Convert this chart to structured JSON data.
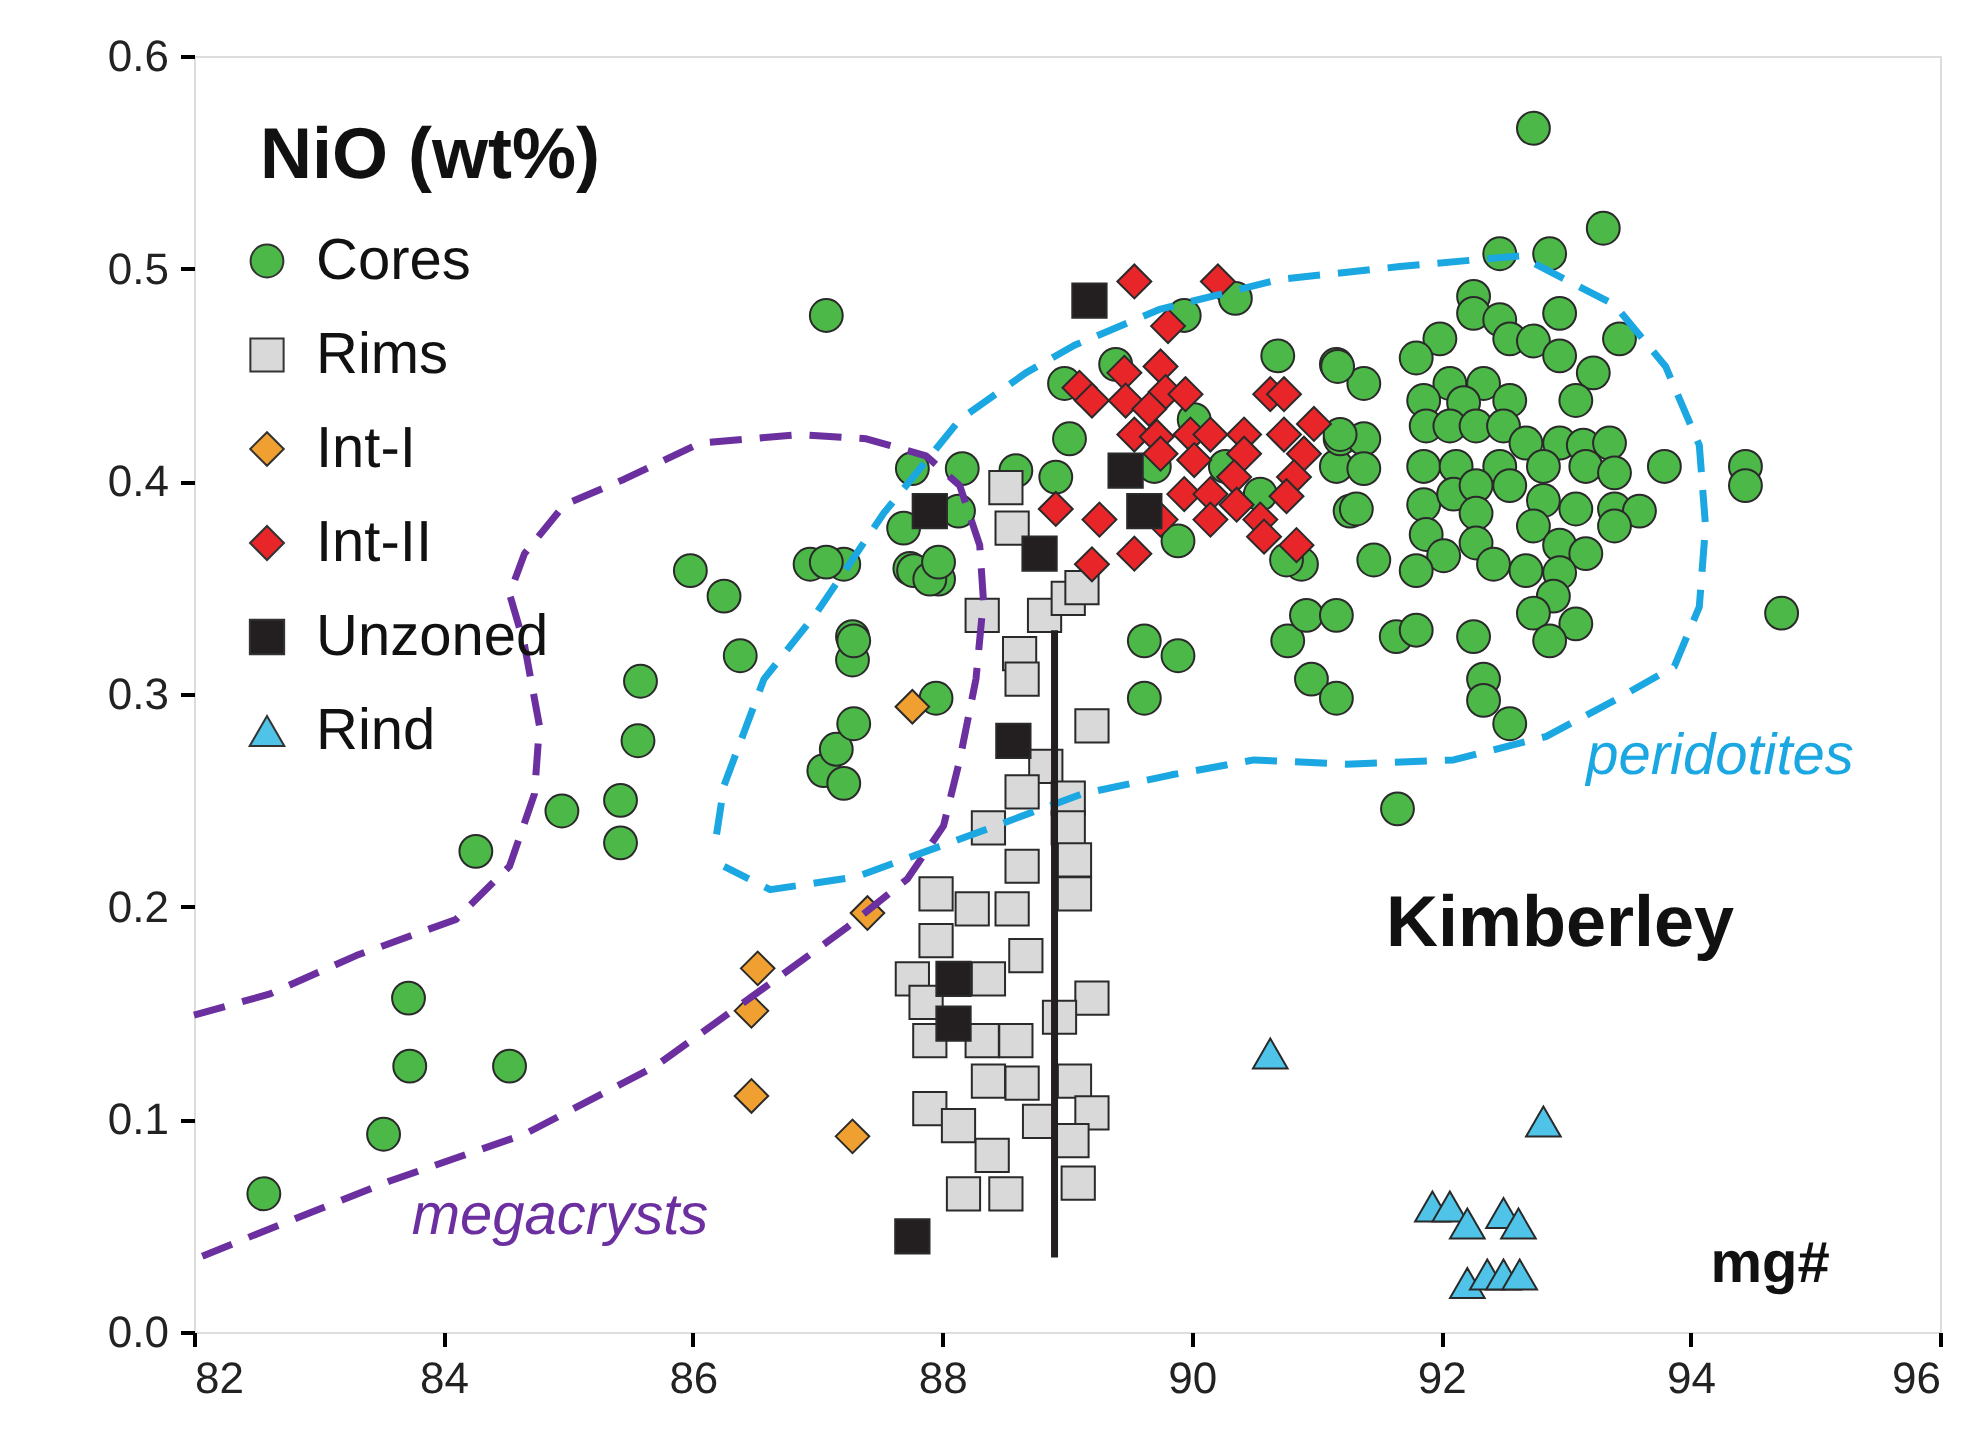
{
  "chart_data": {
    "type": "scatter",
    "ylabel": "NiO (wt%)",
    "xlabel": "mg#",
    "annotations": [
      "Kimberley"
    ],
    "xlim": [
      82,
      96
    ],
    "xticks": [
      82,
      84,
      86,
      88,
      90,
      92,
      94,
      96
    ],
    "ylim": [
      0,
      0.6
    ],
    "yticks": [
      {
        "value": 0,
        "label": "0.0"
      },
      0.1,
      0.2,
      0.3,
      0.4,
      0.5,
      0.6
    ],
    "legend": "top left",
    "series": [
      {
        "type": "line",
        "name": "megacrysts",
        "color": "#6b2fa0",
        "line_style": "dashed",
        "x": [
          82.0,
          82.61,
          83.3,
          84.1,
          84.53,
          84.73,
          84.77,
          84.65,
          84.53,
          84.65,
          84.97,
          85.45,
          86.06,
          86.86,
          87.39,
          87.87,
          88.14,
          88.3,
          88.33,
          88.27,
          88.14,
          88.01,
          87.72,
          87.23,
          86.67,
          85.7,
          84.65,
          83.57,
          82.5,
          82.0
        ],
        "values": [
          0.149,
          0.159,
          0.177,
          0.194,
          0.219,
          0.253,
          0.285,
          0.323,
          0.347,
          0.366,
          0.389,
          0.401,
          0.418,
          0.422,
          0.42,
          0.412,
          0.398,
          0.37,
          0.344,
          0.307,
          0.269,
          0.238,
          0.213,
          0.19,
          0.166,
          0.125,
          0.093,
          0.071,
          0.046,
          0.034
        ]
      },
      {
        "type": "line",
        "name": "peridotites",
        "color": "#1ba7e1",
        "line_style": "dashed",
        "x": [
          86.19,
          86.25,
          86.57,
          86.99,
          87.53,
          88.14,
          88.67,
          89.06,
          89.75,
          90.71,
          91.67,
          92.63,
          93.39,
          93.8,
          94.07,
          94.12,
          94.07,
          93.87,
          93.39,
          92.84,
          92.1,
          91.24,
          90.5,
          89.84,
          89.12,
          88.29,
          87.31,
          86.62,
          86.25
        ],
        "values": [
          0.234,
          0.257,
          0.307,
          0.338,
          0.385,
          0.429,
          0.451,
          0.464,
          0.481,
          0.495,
          0.501,
          0.506,
          0.483,
          0.454,
          0.417,
          0.379,
          0.341,
          0.313,
          0.297,
          0.28,
          0.269,
          0.267,
          0.269,
          0.262,
          0.253,
          0.235,
          0.214,
          0.208,
          0.219
        ]
      },
      {
        "name": "Cores",
        "color": "#4cb848",
        "marker": "circle",
        "x": [
          82.56,
          83.52,
          83.73,
          83.72,
          84.53,
          84.26,
          84.95,
          85.42,
          85.42,
          85.56,
          85.58,
          85.98,
          86.25,
          86.38,
          86.94,
          87.21,
          87.28,
          87.28,
          87.05,
          87.15,
          87.29,
          87.21,
          87.07,
          87.97,
          87.74,
          87.76,
          88.16,
          87.69,
          88.13,
          87.77,
          87.9,
          87.97,
          87.29,
          87.07,
          87.95,
          88.59,
          88.91,
          89.02,
          88.98,
          89.39,
          89.94,
          90.35,
          90.69,
          91.16,
          91.16,
          91.27,
          89.89,
          90.88,
          89.62,
          89.89,
          89.62,
          90.77,
          90.92,
          91.16,
          90.96,
          91.16,
          91.38,
          89.7,
          90.76,
          91.19,
          91.38,
          91.38,
          91.46,
          90.02,
          90.27,
          90.55,
          92.74,
          93.3,
          92.47,
          92.87,
          92.26,
          92.26,
          92.47,
          92.95,
          93.43,
          91.99,
          91.8,
          92.55,
          92.74,
          92.95,
          93.22,
          93.08,
          91.17,
          92.07,
          92.34,
          92.55,
          91.86,
          92.18,
          91.88,
          92.07,
          92.28,
          92.5,
          92.68,
          92.95,
          93.14,
          93.35,
          91.19,
          91.86,
          92.12,
          92.47,
          92.82,
          93.16,
          93.39,
          93.79,
          94.44,
          94.44,
          91.86,
          92.1,
          92.28,
          92.55,
          92.82,
          93.08,
          93.39,
          93.59,
          91.32,
          91.88,
          92.28,
          92.02,
          92.28,
          92.74,
          92.95,
          93.16,
          93.39,
          91.8,
          92.42,
          92.68,
          92.95,
          92.9,
          92.74,
          93.08,
          92.87,
          91.64,
          91.8,
          92.26,
          92.34,
          92.34,
          92.55,
          91.65,
          94.73
        ],
        "values": [
          0.065,
          0.093,
          0.125,
          0.157,
          0.125,
          0.226,
          0.245,
          0.25,
          0.23,
          0.278,
          0.306,
          0.358,
          0.346,
          0.318,
          0.361,
          0.361,
          0.327,
          0.316,
          0.264,
          0.274,
          0.286,
          0.258,
          0.478,
          0.354,
          0.359,
          0.406,
          0.406,
          0.378,
          0.386,
          0.358,
          0.354,
          0.362,
          0.325,
          0.362,
          0.298,
          0.405,
          0.402,
          0.42,
          0.446,
          0.455,
          0.478,
          0.486,
          0.459,
          0.455,
          0.407,
          0.386,
          0.372,
          0.361,
          0.325,
          0.318,
          0.298,
          0.325,
          0.337,
          0.337,
          0.307,
          0.298,
          0.446,
          0.407,
          0.363,
          0.42,
          0.42,
          0.406,
          0.363,
          0.429,
          0.407,
          0.394,
          0.566,
          0.519,
          0.507,
          0.507,
          0.487,
          0.479,
          0.476,
          0.479,
          0.467,
          0.467,
          0.458,
          0.467,
          0.466,
          0.459,
          0.451,
          0.438,
          0.454,
          0.446,
          0.446,
          0.438,
          0.438,
          0.437,
          0.426,
          0.426,
          0.426,
          0.426,
          0.418,
          0.418,
          0.417,
          0.418,
          0.422,
          0.407,
          0.407,
          0.407,
          0.407,
          0.407,
          0.404,
          0.407,
          0.407,
          0.398,
          0.389,
          0.394,
          0.398,
          0.398,
          0.391,
          0.387,
          0.387,
          0.386,
          0.387,
          0.375,
          0.385,
          0.365,
          0.371,
          0.379,
          0.37,
          0.366,
          0.379,
          0.358,
          0.361,
          0.358,
          0.357,
          0.346,
          0.338,
          0.333,
          0.325,
          0.327,
          0.33,
          0.327,
          0.307,
          0.297,
          0.286,
          0.246,
          0.338
        ]
      },
      {
        "name": "Rims",
        "color": "#d9d9d9",
        "marker": "square",
        "x": [
          88.51,
          88.56,
          88.32,
          88.82,
          89.01,
          89.12,
          88.62,
          88.64,
          89.2,
          88.83,
          88.64,
          89.01,
          88.37,
          89.01,
          88.64,
          89.06,
          87.95,
          88.24,
          88.56,
          89.06,
          87.95,
          87.76,
          88.37,
          88.67,
          89.2,
          87.87,
          87.9,
          88.32,
          88.59,
          88.94,
          88.37,
          88.64,
          89.06,
          87.9,
          88.13,
          89.2,
          88.4,
          89.04,
          88.17,
          88.51,
          89.09,
          88.78
        ],
        "values": [
          0.397,
          0.378,
          0.337,
          0.337,
          0.345,
          0.35,
          0.319,
          0.307,
          0.285,
          0.266,
          0.254,
          0.251,
          0.237,
          0.237,
          0.219,
          0.222,
          0.206,
          0.199,
          0.199,
          0.206,
          0.184,
          0.166,
          0.166,
          0.177,
          0.157,
          0.155,
          0.137,
          0.137,
          0.137,
          0.148,
          0.118,
          0.117,
          0.118,
          0.105,
          0.097,
          0.103,
          0.083,
          0.09,
          0.065,
          0.065,
          0.07,
          0.099
        ]
      },
      {
        "name": "Int-I",
        "color": "#f0a030",
        "marker": "diamond",
        "x": [
          87.76,
          87.4,
          86.52,
          86.47,
          86.47,
          87.28
        ],
        "values": [
          0.294,
          0.197,
          0.171,
          0.151,
          0.111,
          0.092
        ]
      },
      {
        "name": "Int-II",
        "color": "#e8262a",
        "marker": "diamond",
        "x": [
          89.54,
          90.21,
          89.81,
          89.75,
          89.46,
          89.1,
          89.2,
          89.47,
          89.79,
          89.95,
          89.66,
          90.63,
          90.74,
          90.98,
          89.54,
          89.72,
          89.99,
          90.15,
          90.42,
          90.74,
          89.75,
          90.02,
          90.42,
          90.9,
          90.34,
          90.82,
          89.94,
          90.15,
          90.36,
          90.76,
          88.91,
          89.26,
          89.75,
          90.15,
          90.55,
          90.58,
          90.84,
          89.2,
          89.54
        ],
        "values": [
          0.494,
          0.494,
          0.473,
          0.454,
          0.451,
          0.444,
          0.438,
          0.438,
          0.442,
          0.441,
          0.434,
          0.441,
          0.441,
          0.427,
          0.422,
          0.421,
          0.422,
          0.422,
          0.422,
          0.422,
          0.413,
          0.41,
          0.413,
          0.413,
          0.402,
          0.402,
          0.394,
          0.394,
          0.389,
          0.393,
          0.387,
          0.382,
          0.382,
          0.382,
          0.382,
          0.374,
          0.37,
          0.361,
          0.366
        ]
      },
      {
        "name": "Unzoned",
        "color": "#231f20",
        "marker": "square",
        "x": [
          89.18,
          89.47,
          89.62,
          87.9,
          88.78,
          88.57,
          88.09,
          88.09,
          87.76
        ],
        "values": [
          0.485,
          0.405,
          0.386,
          0.386,
          0.366,
          0.278,
          0.166,
          0.145,
          0.045
        ]
      },
      {
        "name": "Rind",
        "color": "#4fc3e8",
        "marker": "triangle",
        "x": [
          90.63,
          92.82,
          91.93,
          92.07,
          92.21,
          92.5,
          92.62,
          92.21,
          92.37,
          92.5,
          92.63
        ],
        "values": [
          0.131,
          0.099,
          0.059,
          0.059,
          0.051,
          0.056,
          0.051,
          0.023,
          0.027,
          0.027,
          0.027
        ]
      },
      {
        "type": "line",
        "color": "#231f20",
        "line_style": "solid",
        "x": [
          88.9,
          88.9
        ],
        "values": [
          0.33,
          0.035
        ]
      }
    ]
  }
}
